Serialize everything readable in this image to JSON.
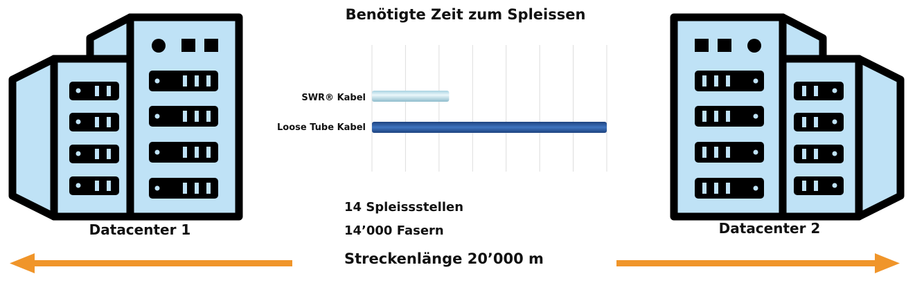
{
  "title": "Benötigte Zeit zum Spleissen",
  "stats": {
    "splices": "14 Spleissstellen",
    "fibers": "14’000 Fasern",
    "length": "Streckenlänge 20’000 m"
  },
  "datacenters": [
    {
      "label": "Datacenter 1",
      "icon": "server-building-icon"
    },
    {
      "label": "Datacenter 2",
      "icon": "server-building-icon"
    }
  ],
  "colors": {
    "building_fill": "#bfe2f6",
    "outline": "#000000",
    "arrow": "#f0952a",
    "swr_bar": "#cfeaf3",
    "loose_tube_bar": "#2b5ba3",
    "gridline": "#dddddd"
  },
  "chart_data": {
    "type": "bar",
    "orientation": "horizontal",
    "title": "Benötigte Zeit zum Spleissen",
    "categories": [
      "SWR® Kabel",
      "Loose Tube Kabel"
    ],
    "values": [
      2.3,
      7
    ],
    "xlim": [
      0,
      7
    ],
    "grid": true,
    "legend": "none"
  }
}
